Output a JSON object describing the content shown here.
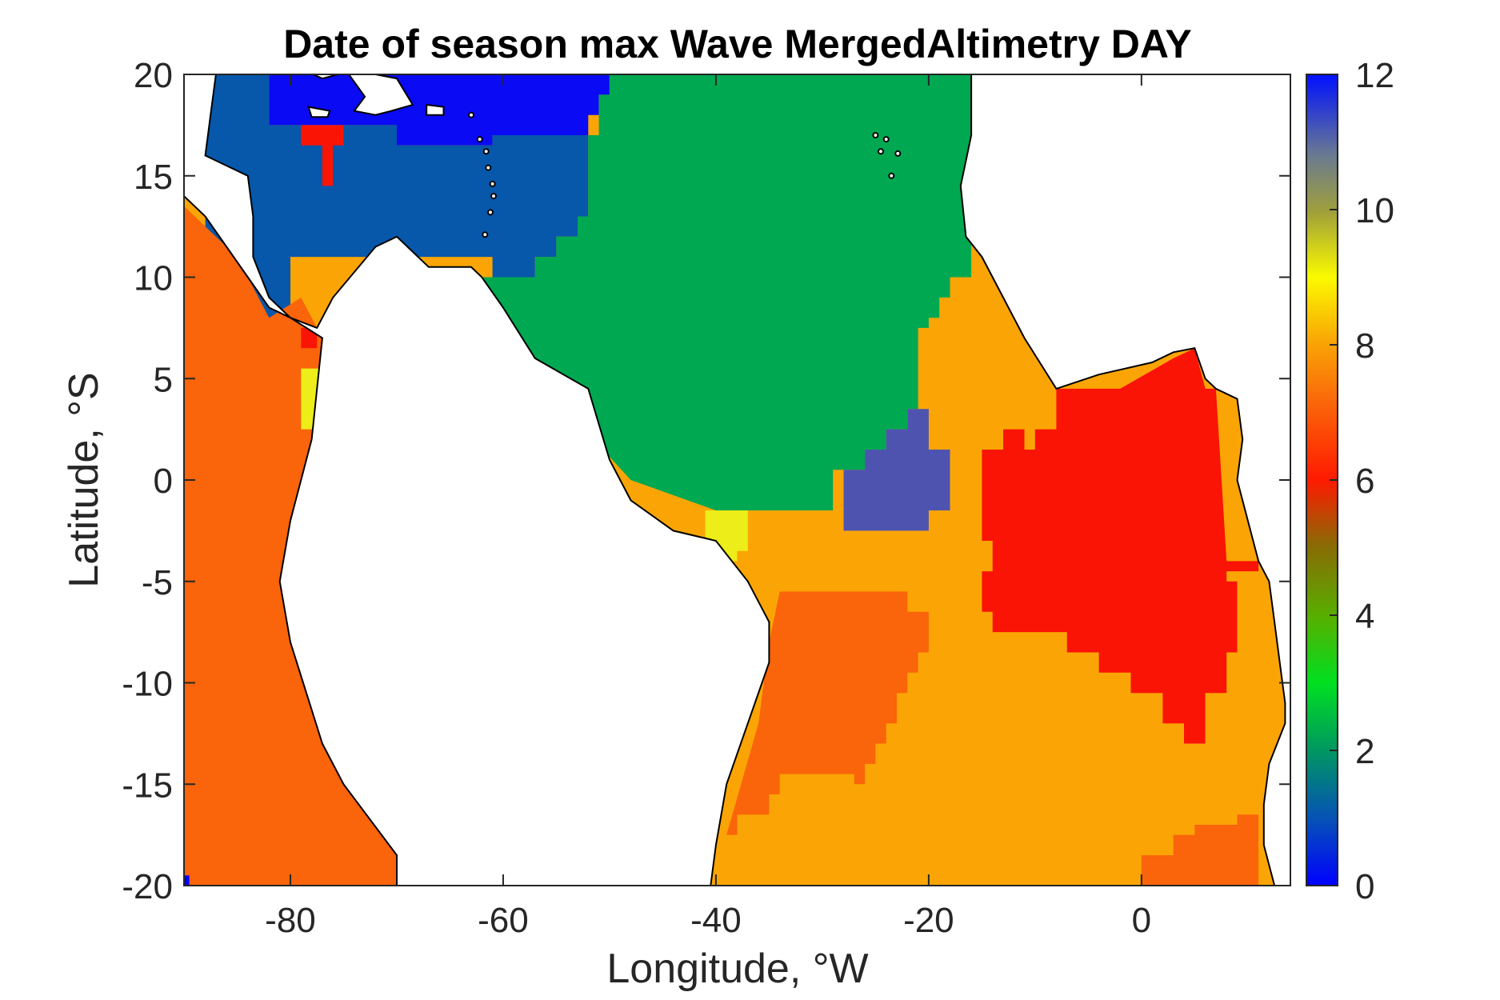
{
  "chart_data": {
    "type": "heatmap",
    "title": "Date of season max Wave MergedAltimetry DAY",
    "xlabel": "Longitude, °W",
    "ylabel": "Latitude, °S",
    "xlim": [
      -90,
      14
    ],
    "ylim": [
      -20,
      20
    ],
    "xticks": [
      -80,
      -60,
      -40,
      -20,
      0
    ],
    "xtick_labels": [
      "-80",
      "-60",
      "-40",
      "-20",
      "0"
    ],
    "yticks": [
      20,
      15,
      10,
      5,
      0,
      -5,
      -10,
      -15,
      -20
    ],
    "ytick_labels": [
      "20",
      "15",
      "10",
      "5",
      "0",
      "-5",
      "-10",
      "-15",
      "-20"
    ],
    "colorbar": {
      "ticks": [
        12,
        10,
        8,
        6,
        4,
        2,
        0
      ],
      "tick_labels": [
        "12",
        "10",
        "8",
        "6",
        "4",
        "2",
        "0"
      ],
      "range": [
        0,
        12
      ],
      "colormap": "jet-like (blue-green-yellow-red-blue)"
    },
    "regions": [
      {
        "name": "caribbean-north",
        "value": 12,
        "color": "#0a0af5",
        "poly": [
          [
            -82,
            20
          ],
          [
            -50,
            20
          ],
          [
            -50,
            19
          ],
          [
            -51,
            19
          ],
          [
            -51,
            18
          ],
          [
            -52,
            18
          ],
          [
            -52,
            17
          ],
          [
            -61,
            17
          ],
          [
            -61,
            16.5
          ],
          [
            -70,
            16.5
          ],
          [
            -70,
            17.5
          ],
          [
            -82,
            17.5
          ]
        ]
      },
      {
        "name": "caribbean-sea",
        "value": 1,
        "color": "#0757aa",
        "poly": [
          [
            -88,
            20
          ],
          [
            -82,
            20
          ],
          [
            -82,
            17.5
          ],
          [
            -70,
            17.5
          ],
          [
            -70,
            16.5
          ],
          [
            -61,
            16.5
          ],
          [
            -61,
            17
          ],
          [
            -52,
            17
          ],
          [
            -52,
            13
          ],
          [
            -53,
            13
          ],
          [
            -53,
            12
          ],
          [
            -55,
            12
          ],
          [
            -55,
            11
          ],
          [
            -57,
            11
          ],
          [
            -57,
            10
          ],
          [
            -61,
            10
          ],
          [
            -61,
            11
          ],
          [
            -80,
            11
          ],
          [
            -80,
            8
          ],
          [
            -88,
            8
          ]
        ]
      },
      {
        "name": "north-atlantic",
        "value": 2,
        "color": "#00a851",
        "poly": [
          [
            -50,
            20
          ],
          [
            -16,
            20
          ],
          [
            -16,
            10
          ],
          [
            -18,
            10
          ],
          [
            -18,
            9
          ],
          [
            -19,
            9
          ],
          [
            -19,
            8
          ],
          [
            -20,
            8
          ],
          [
            -20,
            7.5
          ],
          [
            -21,
            7.5
          ],
          [
            -21,
            3.5
          ],
          [
            -22,
            3.5
          ],
          [
            -22,
            2.5
          ],
          [
            -24,
            2.5
          ],
          [
            -24,
            1.5
          ],
          [
            -26,
            1.5
          ],
          [
            -26,
            0.5
          ],
          [
            -29,
            0.5
          ],
          [
            -29,
            -1.5
          ],
          [
            -40,
            -1.5
          ],
          [
            -48,
            0
          ],
          [
            -62,
            8
          ],
          [
            -62,
            10
          ],
          [
            -57,
            10
          ],
          [
            -57,
            11
          ],
          [
            -55,
            11
          ],
          [
            -55,
            12
          ],
          [
            -53,
            12
          ],
          [
            -53,
            13
          ],
          [
            -52,
            13
          ],
          [
            -52,
            17
          ],
          [
            -51,
            17
          ],
          [
            -51,
            19
          ],
          [
            -50,
            19
          ]
        ]
      },
      {
        "name": "equatorial-blue-patch",
        "value": 11,
        "color": "#4f53b0",
        "poly": [
          [
            -22,
            3.5
          ],
          [
            -20,
            3.5
          ],
          [
            -20,
            1.5
          ],
          [
            -18,
            1.5
          ],
          [
            -18,
            -1.5
          ],
          [
            -20,
            -1.5
          ],
          [
            -20,
            -2.5
          ],
          [
            -28,
            -2.5
          ],
          [
            -28,
            0.5
          ],
          [
            -26,
            0.5
          ],
          [
            -26,
            1.5
          ],
          [
            -24,
            1.5
          ],
          [
            -24,
            2.5
          ],
          [
            -22,
            2.5
          ]
        ]
      },
      {
        "name": "brazil-yellow-patch",
        "value": 9,
        "color": "#eded19",
        "poly": [
          [
            -41,
            -1.5
          ],
          [
            -37,
            -1.5
          ],
          [
            -37,
            -3.5
          ],
          [
            -38,
            -3.5
          ],
          [
            -38,
            -4
          ],
          [
            -40,
            -4
          ],
          [
            -41,
            -3
          ]
        ]
      },
      {
        "name": "gulf-of-guinea-red",
        "value": 6,
        "color": "#fa1405",
        "poly": [
          [
            -8,
            4.5
          ],
          [
            -2,
            4.5
          ],
          [
            3,
            6
          ],
          [
            5,
            6.5
          ],
          [
            6,
            4.5
          ],
          [
            7,
            4.5
          ],
          [
            8,
            -4
          ],
          [
            11,
            -4
          ],
          [
            11,
            -4.5
          ],
          [
            8,
            -4.5
          ],
          [
            8,
            -5
          ],
          [
            9,
            -5
          ],
          [
            9,
            -8.5
          ],
          [
            8,
            -8.5
          ],
          [
            8,
            -10.5
          ],
          [
            6,
            -10.5
          ],
          [
            6,
            -13
          ],
          [
            4,
            -13
          ],
          [
            4,
            -12
          ],
          [
            2,
            -12
          ],
          [
            2,
            -10.5
          ],
          [
            -1,
            -10.5
          ],
          [
            -1,
            -9.5
          ],
          [
            -4,
            -9.5
          ],
          [
            -4,
            -8.5
          ],
          [
            -7,
            -8.5
          ],
          [
            -7,
            -7.5
          ],
          [
            -14,
            -7.5
          ],
          [
            -14,
            -6.5
          ],
          [
            -15,
            -6.5
          ],
          [
            -15,
            -4.5
          ],
          [
            -14,
            -4.5
          ],
          [
            -14,
            -3
          ],
          [
            -15,
            -3
          ],
          [
            -15,
            1.5
          ],
          [
            -13,
            1.5
          ],
          [
            -13,
            2.5
          ],
          [
            -11,
            2.5
          ],
          [
            -11,
            1.5
          ],
          [
            -10,
            1.5
          ],
          [
            -10,
            2.5
          ],
          [
            -8,
            2.5
          ]
        ]
      },
      {
        "name": "south-atlantic-orange-west",
        "value": 7,
        "color": "#fa640a",
        "poly": [
          [
            -34,
            -5.5
          ],
          [
            -22,
            -5.5
          ],
          [
            -22,
            -6.5
          ],
          [
            -20,
            -6.5
          ],
          [
            -20,
            -8.5
          ],
          [
            -21,
            -8.5
          ],
          [
            -21,
            -9.5
          ],
          [
            -22,
            -9.5
          ],
          [
            -22,
            -10.5
          ],
          [
            -23,
            -10.5
          ],
          [
            -23,
            -12
          ],
          [
            -24,
            -12
          ],
          [
            -24,
            -13
          ],
          [
            -25,
            -13
          ],
          [
            -25,
            -14
          ],
          [
            -26,
            -14
          ],
          [
            -26,
            -15
          ],
          [
            -27,
            -15
          ],
          [
            -27,
            -14.5
          ],
          [
            -34,
            -14.5
          ],
          [
            -34,
            -15.5
          ],
          [
            -35,
            -15.5
          ],
          [
            -35,
            -16.5
          ],
          [
            -38,
            -16.5
          ],
          [
            -38,
            -17.5
          ],
          [
            -39,
            -17.5
          ],
          [
            -36,
            -12
          ],
          [
            -35,
            -8
          ]
        ]
      },
      {
        "name": "angola-orange",
        "value": 7,
        "color": "#fa640a",
        "poly": [
          [
            9,
            -16.5
          ],
          [
            11,
            -16.5
          ],
          [
            11,
            -20
          ],
          [
            0,
            -20
          ],
          [
            0,
            -18.5
          ],
          [
            3,
            -18.5
          ],
          [
            3,
            -17.5
          ],
          [
            5,
            -17.5
          ],
          [
            5,
            -17
          ],
          [
            9,
            -17
          ]
        ]
      },
      {
        "name": "pacific-orange",
        "value": 7,
        "color": "#fa640a",
        "poly": [
          [
            -90,
            13.5
          ],
          [
            -86,
            11.5
          ],
          [
            -84,
            10
          ],
          [
            -82,
            8
          ],
          [
            -79,
            9
          ],
          [
            -77,
            7
          ],
          [
            -78,
            2
          ],
          [
            -80,
            -2
          ],
          [
            -81,
            -5
          ],
          [
            -80,
            -8
          ],
          [
            -77,
            -13
          ],
          [
            -75,
            -15
          ],
          [
            -70,
            -18.5
          ],
          [
            -70,
            -20
          ],
          [
            -90,
            -20
          ]
        ]
      }
    ],
    "ocean_background": {
      "value": 8,
      "color": "#faa505"
    },
    "small_features": [
      {
        "name": "red-T",
        "value": 6,
        "color": "#fa1405"
      },
      {
        "name": "panama-red",
        "value": 6,
        "color": "#fa1405"
      },
      {
        "name": "ecuador-yellow",
        "value": 9,
        "color": "#eded19"
      }
    ]
  }
}
